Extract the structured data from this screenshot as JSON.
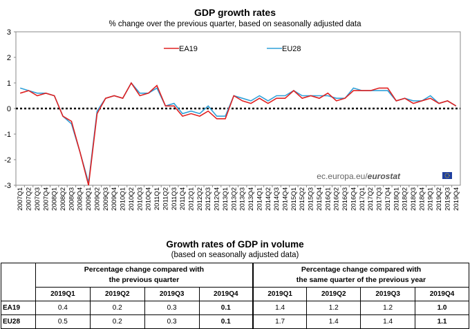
{
  "chart_data": {
    "type": "line",
    "title": "GDP growth rates",
    "subtitle": "% change over the previous quarter, based on seasonally adjusted data",
    "ylim": [
      -3,
      3
    ],
    "yticks": [
      3,
      2,
      1,
      0,
      -1,
      -2,
      -3
    ],
    "categories": [
      "2007Q1",
      "2007Q2",
      "2007Q3",
      "2007Q4",
      "2008Q1",
      "2008Q2",
      "2008Q3",
      "2008Q4",
      "2009Q1",
      "2009Q2",
      "2009Q3",
      "2009Q4",
      "2010Q1",
      "2010Q2",
      "2010Q3",
      "2010Q4",
      "2011Q1",
      "2011Q2",
      "2011Q3",
      "2011Q4",
      "2012Q1",
      "2012Q2",
      "2012Q3",
      "2012Q4",
      "2013Q1",
      "2013Q2",
      "2013Q3",
      "2013Q4",
      "2014Q1",
      "2014Q2",
      "2014Q3",
      "2014Q4",
      "2015Q1",
      "2015Q2",
      "2015Q3",
      "2015Q4",
      "2016Q1",
      "2016Q2",
      "2016Q3",
      "2016Q4",
      "2017Q1",
      "2017Q2",
      "2017Q3",
      "2017Q4",
      "2018Q1",
      "2018Q2",
      "2018Q3",
      "2018Q4",
      "2019Q1",
      "2019Q2",
      "2019Q3",
      "2019Q4"
    ],
    "series": [
      {
        "name": "EA19",
        "color": "#e02020",
        "values": [
          0.6,
          0.7,
          0.5,
          0.6,
          0.5,
          -0.3,
          -0.5,
          -1.7,
          -3.0,
          -0.2,
          0.4,
          0.5,
          0.4,
          1.0,
          0.5,
          0.6,
          0.9,
          0.1,
          0.1,
          -0.3,
          -0.2,
          -0.3,
          -0.1,
          -0.4,
          -0.4,
          0.5,
          0.3,
          0.2,
          0.4,
          0.2,
          0.4,
          0.4,
          0.7,
          0.4,
          0.5,
          0.4,
          0.6,
          0.3,
          0.4,
          0.7,
          0.7,
          0.7,
          0.8,
          0.8,
          0.3,
          0.4,
          0.2,
          0.3,
          0.4,
          0.2,
          0.3,
          0.1
        ]
      },
      {
        "name": "EU28",
        "color": "#2fa0d8",
        "values": [
          0.8,
          0.7,
          0.6,
          0.6,
          0.5,
          -0.3,
          -0.6,
          -1.7,
          -2.9,
          -0.1,
          0.4,
          0.5,
          0.4,
          1.0,
          0.6,
          0.6,
          0.8,
          0.1,
          0.2,
          -0.2,
          -0.1,
          -0.2,
          0.1,
          -0.3,
          -0.3,
          0.5,
          0.4,
          0.3,
          0.5,
          0.3,
          0.5,
          0.5,
          0.7,
          0.5,
          0.5,
          0.5,
          0.5,
          0.4,
          0.4,
          0.8,
          0.7,
          0.7,
          0.7,
          0.7,
          0.3,
          0.4,
          0.3,
          0.3,
          0.5,
          0.2,
          0.3,
          0.1
        ]
      }
    ],
    "legend": "top",
    "grid": false
  },
  "watermark": {
    "text": "ec.europa.eu/",
    "brand": "eurostat"
  },
  "table": {
    "title": "Growth rates of GDP in volume",
    "subtitle": "(based on seasonally adjusted data)",
    "group1": {
      "line1": "Percentage change compared with",
      "line2": "the previous quarter"
    },
    "group2": {
      "line1": "Percentage change compared with",
      "line2": "the same quarter of the previous year"
    },
    "quarters": [
      "2019Q1",
      "2019Q2",
      "2019Q3",
      "2019Q4"
    ],
    "rows": [
      {
        "label": "EA19",
        "qoq": [
          "0.4",
          "0.2",
          "0.3",
          "0.1"
        ],
        "yoy": [
          "1.4",
          "1.2",
          "1.2",
          "1.0"
        ]
      },
      {
        "label": "EU28",
        "qoq": [
          "0.5",
          "0.2",
          "0.3",
          "0.1"
        ],
        "yoy": [
          "1.7",
          "1.4",
          "1.4",
          "1.1"
        ]
      }
    ]
  }
}
